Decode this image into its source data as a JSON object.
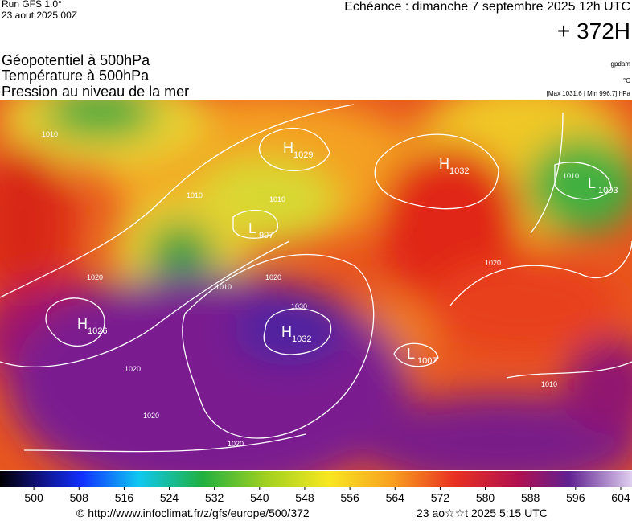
{
  "header": {
    "run": "Run GFS 1.0°",
    "date": "23 aout 2025 00Z",
    "echeance": "Echéance : dimanche 7 septembre 2025 12h UTC",
    "offset": "+ 372H"
  },
  "legend": {
    "lines": [
      "Géopotentiel à 500hPa",
      "Température à 500hPa",
      "Pression au niveau de la mer"
    ],
    "units": [
      "gpdam",
      "°C",
      "[Max 1031.6 | Min 996.7] hPa"
    ]
  },
  "map": {
    "centers": [
      {
        "letter": "H",
        "value": "1029"
      },
      {
        "letter": "L",
        "value": "997"
      },
      {
        "letter": "H",
        "value": "1026"
      },
      {
        "letter": "H",
        "value": "1032"
      },
      {
        "letter": "H",
        "value": "1032"
      },
      {
        "letter": "L",
        "value": "1003"
      },
      {
        "letter": "L",
        "value": "1007"
      }
    ],
    "isobar_labels": [
      "1020",
      "1010",
      "1020",
      "1030",
      "1020",
      "1020",
      "1020",
      "1020",
      "1010",
      "1010",
      "1010",
      "1010",
      "1010"
    ]
  },
  "colorbar": {
    "lim": [
      494,
      606
    ],
    "ticks": [
      500,
      508,
      516,
      524,
      532,
      540,
      548,
      556,
      564,
      572,
      580,
      588,
      596,
      604
    ]
  },
  "footer": {
    "url": "© http://www.infoclimat.fr/z/gfs/europe/500/372",
    "time": "23 ao☆☆t 2025  5:15 UTC"
  }
}
